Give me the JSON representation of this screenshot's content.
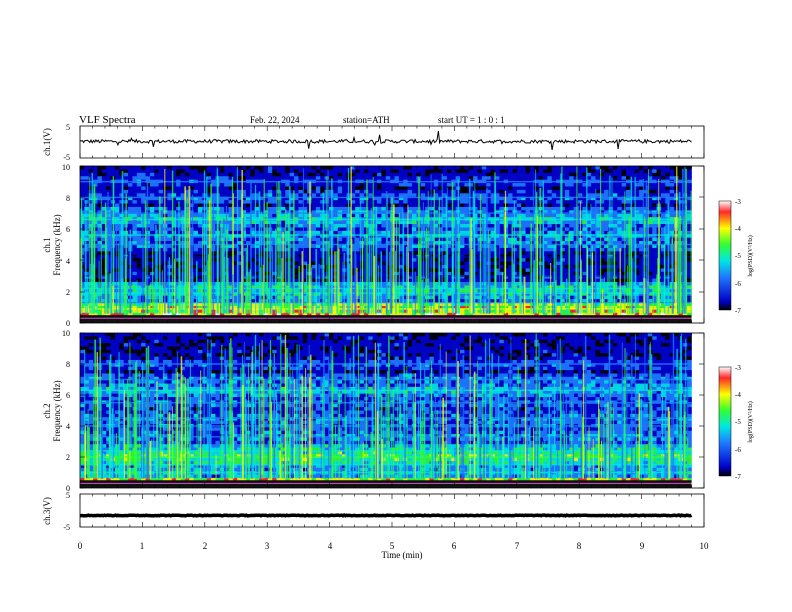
{
  "header": {
    "title": "VLF  Spectra",
    "date": "Feb. 22, 2024",
    "station": "station=ATH",
    "start": "start  UT  =    1  : 0   : 1"
  },
  "colors": {
    "background": "#ffffff",
    "trace": "#000000",
    "spectrogram_base": "#0a1ea0",
    "spectrogram_colorscale": [
      "#000000",
      "#0000c8",
      "#1e78ff",
      "#00e6e6",
      "#32ff32",
      "#ffff00",
      "#ff2828",
      "#ffffff"
    ]
  },
  "chart_data": [
    {
      "type": "line",
      "id": "ch1-waveform",
      "ylabel": "ch.1(V)",
      "yticks": [
        "5",
        "-5"
      ],
      "ylim": [
        -5,
        5
      ],
      "xlim": [
        0,
        10
      ],
      "baseline_value": 0.2,
      "trace_end_min": 9.8
    },
    {
      "type": "heatmap",
      "id": "ch1-spectrogram",
      "ylabel_lines": [
        "ch.1",
        "Frequency  (kHz)"
      ],
      "yticks": [
        "0",
        "2",
        "4",
        "6",
        "8",
        "10"
      ],
      "ylim": [
        0,
        10
      ],
      "xlim": [
        0,
        10
      ],
      "data_end_min": 9.8,
      "colorbar": {
        "label": "log(PSD)(V²/Hz)",
        "ticks": [
          "-3",
          "-4",
          "-5",
          "-6",
          "-7"
        ],
        "range": [
          -7,
          -3
        ]
      },
      "bands_khz": [
        {
          "f": 0.3,
          "level": -3.2
        },
        {
          "f": 0.9,
          "level": -3.6
        },
        {
          "f": 1.3,
          "level": -5.3
        },
        {
          "f": 1.9,
          "level": -5.0
        },
        {
          "f": 2.2,
          "level": -4.8
        },
        {
          "f": 3.0,
          "level": -6.1
        },
        {
          "f": 4.2,
          "level": -6.7
        },
        {
          "f": 5.0,
          "level": -5.4
        },
        {
          "f": 5.6,
          "level": -5.2
        },
        {
          "f": 6.6,
          "level": -4.9
        },
        {
          "f": 7.0,
          "level": -5.3
        },
        {
          "f": 8.0,
          "level": -5.6
        },
        {
          "f": 9.0,
          "level": -5.8
        }
      ],
      "sferic_density_per_min": 40
    },
    {
      "type": "heatmap",
      "id": "ch2-spectrogram",
      "ylabel_lines": [
        "ch.2",
        "Frequency  (kHz)"
      ],
      "yticks": [
        "0",
        "2",
        "4",
        "6",
        "8",
        "10"
      ],
      "ylim": [
        0,
        10
      ],
      "xlim": [
        0,
        10
      ],
      "data_end_min": 9.8,
      "colorbar": {
        "label": "log(PSD)(V²/Hz)",
        "ticks": [
          "-3",
          "-4",
          "-5",
          "-6",
          "-7"
        ],
        "range": [
          -7,
          -3
        ]
      },
      "bands_khz": [
        {
          "f": 0.3,
          "level": -3.4
        },
        {
          "f": 1.0,
          "level": -5.0
        },
        {
          "f": 1.5,
          "level": -5.2
        },
        {
          "f": 2.0,
          "level": -4.2
        },
        {
          "f": 2.4,
          "level": -4.7
        },
        {
          "f": 3.3,
          "level": -5.3
        },
        {
          "f": 4.0,
          "level": -5.6
        },
        {
          "f": 4.5,
          "level": -5.4
        },
        {
          "f": 5.5,
          "level": -5.5
        },
        {
          "f": 6.3,
          "level": -5.0
        },
        {
          "f": 7.0,
          "level": -5.4
        },
        {
          "f": 8.0,
          "level": -5.7
        }
      ],
      "sferic_density_per_min": 40
    },
    {
      "type": "line",
      "id": "ch3-waveform",
      "ylabel": "ch.3(V)",
      "yticks": [
        "5",
        "-5"
      ],
      "ylim": [
        -5,
        5
      ],
      "xlim": [
        0,
        10
      ],
      "baseline_value": -1.5,
      "trace_end_min": 9.8,
      "xlabel": "Time  (min)",
      "xticks": [
        "0",
        "1",
        "2",
        "3",
        "4",
        "5",
        "6",
        "7",
        "8",
        "9",
        "10"
      ]
    }
  ]
}
